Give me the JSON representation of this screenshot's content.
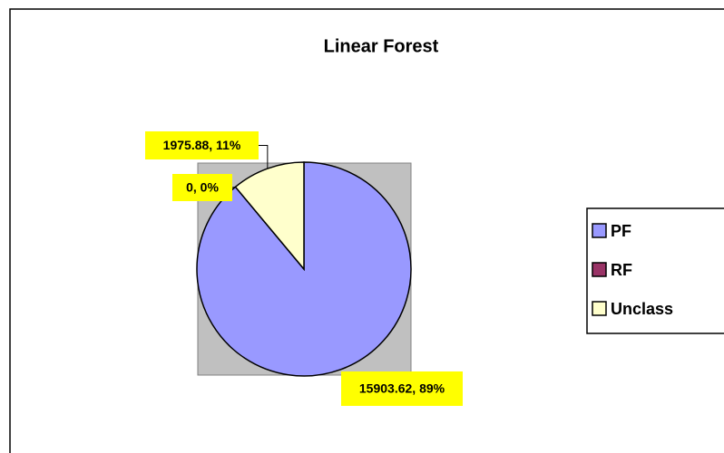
{
  "chart_data": {
    "type": "pie",
    "title": "Linear Forest",
    "categories": [
      "PF",
      "RF",
      "Unclass"
    ],
    "values": [
      15903.62,
      0,
      1975.88
    ],
    "value_labels": [
      "15903.62, 89%",
      "0, 0%",
      "1975.88, 11%"
    ],
    "colors": [
      "#9999ff",
      "#993366",
      "#ffffcc"
    ],
    "legend": "right"
  }
}
